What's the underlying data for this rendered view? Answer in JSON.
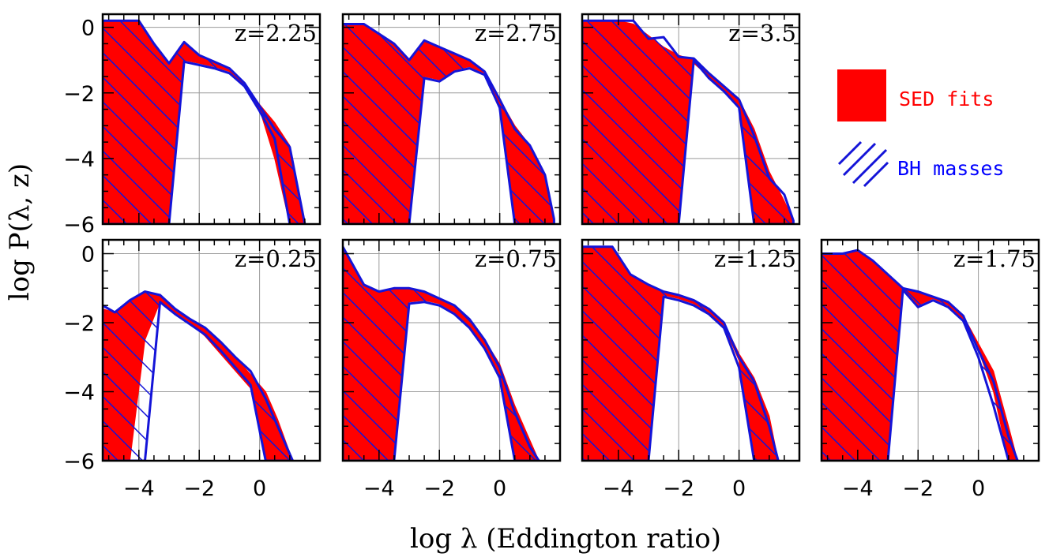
{
  "figure": {
    "ylabel": "log P(λ, z)",
    "xlabel": "log λ  (Eddington ratio)"
  },
  "legend": {
    "sed_label": "SED fits",
    "bh_label": "BH masses",
    "sed_color": "#ff0000",
    "bh_color": "#0000ff"
  },
  "chart_data": [
    {
      "type": "area",
      "label": "z=2.25",
      "xlim": [
        -5.2,
        2.0
      ],
      "ylim": [
        -6,
        0.4
      ],
      "xticks": [],
      "yticks": [
        "0",
        "-2",
        "-4",
        "-6"
      ],
      "series": [
        {
          "name": "SED fits",
          "x": [
            -5.2,
            -4.0,
            -3.5,
            -3.0,
            -2.5,
            -2.0,
            -1.5,
            -1.0,
            -0.5,
            0,
            0.5,
            1.0,
            1.5
          ],
          "upper": [
            0.2,
            0.2,
            -0.5,
            -1.1,
            -0.45,
            -0.9,
            -1.05,
            -1.3,
            -1.7,
            -2.35,
            -2.9,
            -3.6,
            -5.95
          ],
          "lower": [
            -6,
            -6,
            -6,
            -6,
            -1.0,
            -1.1,
            -1.2,
            -1.35,
            -1.8,
            -2.5,
            -4.0,
            -6,
            -6
          ]
        },
        {
          "name": "BH masses",
          "x": [
            -5.2,
            -4.0,
            -3.5,
            -3.0,
            -2.5,
            -2.0,
            -1.5,
            -1.0,
            -0.5,
            0,
            0.5,
            1.0,
            1.5
          ],
          "upper": [
            0.2,
            0.2,
            -0.5,
            -1.1,
            -0.45,
            -0.85,
            -1.05,
            -1.25,
            -1.7,
            -2.4,
            -3.1,
            -3.65,
            -6
          ],
          "lower": [
            -6,
            -6,
            -6,
            -6,
            -1.05,
            -1.15,
            -1.25,
            -1.4,
            -1.8,
            -2.55,
            -3.4,
            -6,
            -6
          ]
        }
      ]
    },
    {
      "type": "area",
      "label": "z=2.75",
      "xlim": [
        -5.2,
        2.0
      ],
      "ylim": [
        -6,
        0.4
      ],
      "xticks": [],
      "yticks": [],
      "series": [
        {
          "name": "SED fits",
          "x": [
            -5.2,
            -4.5,
            -4.0,
            -3.5,
            -3.0,
            -2.5,
            -2.0,
            -1.5,
            -1.0,
            -0.5,
            0,
            0.5,
            1.0,
            1.5,
            1.8
          ],
          "upper": [
            0.1,
            0.1,
            -0.2,
            -0.5,
            -1.0,
            -0.4,
            -0.6,
            -0.8,
            -1.0,
            -1.35,
            -2.2,
            -3.0,
            -3.6,
            -4.5,
            -5.85
          ],
          "lower": [
            -6,
            -6,
            -6,
            -6,
            -6,
            -1.5,
            -1.6,
            -1.3,
            -1.2,
            -1.4,
            -2.4,
            -6,
            -6,
            -6,
            -6
          ]
        },
        {
          "name": "BH masses",
          "x": [
            -5.2,
            -4.5,
            -4.0,
            -3.5,
            -3.0,
            -2.5,
            -2.0,
            -1.5,
            -1.0,
            -0.5,
            0,
            0.5,
            1.0,
            1.5,
            1.8
          ],
          "upper": [
            0.1,
            0.1,
            -0.2,
            -0.5,
            -1.0,
            -0.4,
            -0.6,
            -0.8,
            -1.0,
            -1.35,
            -2.2,
            -3.1,
            -3.6,
            -4.5,
            -5.85
          ],
          "lower": [
            -6,
            -6,
            -6,
            -6,
            -6,
            -1.55,
            -1.65,
            -1.35,
            -1.25,
            -1.45,
            -2.45,
            -6,
            -6,
            -6,
            -6
          ]
        }
      ]
    },
    {
      "type": "area",
      "label": "z=3.5",
      "xlim": [
        -5.2,
        2.0
      ],
      "ylim": [
        -6,
        0.4
      ],
      "xticks": [],
      "yticks": [],
      "series": [
        {
          "name": "SED fits",
          "x": [
            -5.2,
            -4.0,
            -3.5,
            -3.0,
            -2.5,
            -2.0,
            -1.5,
            -1.0,
            -0.5,
            0,
            0.5,
            1.0,
            1.5,
            1.8
          ],
          "upper": [
            0.2,
            0.2,
            0.1,
            -0.25,
            -0.6,
            -0.85,
            -1.0,
            -1.4,
            -1.8,
            -2.2,
            -3.1,
            -4.4,
            -5.3,
            -5.9
          ],
          "lower": [
            -6,
            -6,
            -6,
            -6,
            -6,
            -6,
            -1.1,
            -1.5,
            -1.9,
            -2.4,
            -6,
            -6,
            -6,
            -6
          ]
        },
        {
          "name": "BH masses",
          "x": [
            -5.2,
            -4.0,
            -3.5,
            -3.0,
            -2.5,
            -2.0,
            -1.5,
            -1.0,
            -0.5,
            0,
            0.5,
            1.0,
            1.5,
            1.8
          ],
          "upper": [
            0.2,
            0.2,
            0.2,
            -0.35,
            -0.3,
            -0.9,
            -0.95,
            -1.4,
            -1.8,
            -2.2,
            -3.3,
            -4.6,
            -5.1,
            -5.9
          ],
          "lower": [
            -6,
            -6,
            -6,
            -6,
            -6,
            -6,
            -1.0,
            -1.55,
            -1.95,
            -2.45,
            -6,
            -6,
            -6,
            -6
          ]
        }
      ]
    },
    {
      "type": "area",
      "label": "z=0.25",
      "xlim": [
        -5.2,
        2.0
      ],
      "ylim": [
        -6,
        0.4
      ],
      "xticks": [
        "-4",
        "-2",
        "0"
      ],
      "yticks": [
        "0",
        "-2",
        "-4",
        "-6"
      ],
      "series": [
        {
          "name": "SED fits",
          "x": [
            -5.2,
            -4.8,
            -4.3,
            -3.8,
            -3.3,
            -2.8,
            -2.3,
            -1.8,
            -1.3,
            -0.8,
            -0.3,
            0.2,
            0.6,
            1.1
          ],
          "upper": [
            -1.6,
            -1.7,
            -1.4,
            -1.1,
            -1.2,
            -1.6,
            -1.9,
            -2.2,
            -2.6,
            -3.0,
            -3.5,
            -4.0,
            -4.8,
            -6
          ],
          "lower": [
            -6,
            -6,
            -6,
            -2.5,
            -1.4,
            -1.7,
            -2.0,
            -2.4,
            -2.9,
            -3.4,
            -3.9,
            -6,
            -6,
            -6
          ]
        },
        {
          "name": "BH masses",
          "x": [
            -5.2,
            -4.8,
            -4.3,
            -3.8,
            -3.3,
            -2.8,
            -2.3,
            -1.8,
            -1.3,
            -0.8,
            -0.3,
            0.2,
            0.6,
            1.1
          ],
          "upper": [
            -1.5,
            -1.7,
            -1.35,
            -1.1,
            -1.2,
            -1.6,
            -1.9,
            -2.15,
            -2.55,
            -3.0,
            -3.4,
            -4.2,
            -5.0,
            -6
          ],
          "lower": [
            -6,
            -6,
            -6,
            -6,
            -1.4,
            -1.75,
            -2.05,
            -2.35,
            -2.8,
            -3.3,
            -3.8,
            -6,
            -6,
            -6
          ]
        }
      ]
    },
    {
      "type": "area",
      "label": "z=0.75",
      "xlim": [
        -5.2,
        2.0
      ],
      "ylim": [
        -6,
        0.4
      ],
      "xticks": [
        "-4",
        "-2",
        "0"
      ],
      "yticks": [],
      "series": [
        {
          "name": "SED fits",
          "x": [
            -5.2,
            -4.5,
            -4.0,
            -3.5,
            -3.0,
            -2.5,
            -2.0,
            -1.5,
            -1.0,
            -0.5,
            0,
            0.5,
            1.0,
            1.3
          ],
          "upper": [
            0.2,
            -0.9,
            -1.1,
            -1.0,
            -1.0,
            -1.1,
            -1.3,
            -1.5,
            -1.9,
            -2.5,
            -3.2,
            -4.4,
            -5.4,
            -6
          ],
          "lower": [
            -6,
            -6,
            -6,
            -6,
            -1.4,
            -1.35,
            -1.45,
            -1.7,
            -2.1,
            -2.7,
            -3.5,
            -6,
            -6,
            -6
          ]
        },
        {
          "name": "BH masses",
          "x": [
            -5.2,
            -4.5,
            -4.0,
            -3.5,
            -3.0,
            -2.5,
            -2.0,
            -1.5,
            -1.0,
            -0.5,
            0,
            0.5,
            1.0,
            1.3
          ],
          "upper": [
            0.2,
            -0.9,
            -1.1,
            -1.0,
            -1.0,
            -1.1,
            -1.3,
            -1.5,
            -1.9,
            -2.5,
            -3.3,
            -4.6,
            -5.6,
            -6
          ],
          "lower": [
            -6,
            -6,
            -6,
            -6,
            -1.45,
            -1.4,
            -1.5,
            -1.75,
            -2.15,
            -2.75,
            -3.6,
            -6,
            -6,
            -6
          ]
        }
      ]
    },
    {
      "type": "area",
      "label": "z=1.25",
      "xlim": [
        -5.2,
        2.0
      ],
      "ylim": [
        -6,
        0.4
      ],
      "xticks": [
        "-4",
        "-2",
        "0"
      ],
      "yticks": [],
      "series": [
        {
          "name": "SED fits",
          "x": [
            -5.2,
            -4.2,
            -3.6,
            -3.0,
            -2.5,
            -2.0,
            -1.5,
            -1.0,
            -0.5,
            0,
            0.5,
            1.0,
            1.3
          ],
          "upper": [
            0.2,
            0.2,
            -0.6,
            -0.9,
            -1.1,
            -1.2,
            -1.35,
            -1.6,
            -2.0,
            -2.9,
            -3.6,
            -4.7,
            -6
          ],
          "lower": [
            -6,
            -6,
            -6,
            -6,
            -1.2,
            -1.3,
            -1.45,
            -1.7,
            -2.1,
            -3.1,
            -6,
            -6,
            -6
          ]
        },
        {
          "name": "BH masses",
          "x": [
            -5.2,
            -4.2,
            -3.6,
            -3.0,
            -2.5,
            -2.0,
            -1.5,
            -1.0,
            -0.5,
            0,
            0.5,
            1.0,
            1.3
          ],
          "upper": [
            0.2,
            0.2,
            -0.6,
            -0.9,
            -1.1,
            -1.2,
            -1.35,
            -1.6,
            -2.0,
            -3.0,
            -3.7,
            -5.0,
            -6
          ],
          "lower": [
            -6,
            -6,
            -6,
            -6,
            -1.25,
            -1.35,
            -1.5,
            -1.75,
            -2.15,
            -3.3,
            -6,
            -6,
            -6
          ]
        }
      ]
    },
    {
      "type": "area",
      "label": "z=1.75",
      "xlim": [
        -5.2,
        2.0
      ],
      "ylim": [
        -6,
        0.4
      ],
      "xticks": [
        "-4",
        "-2",
        "0"
      ],
      "yticks": [],
      "series": [
        {
          "name": "SED fits",
          "x": [
            -5.2,
            -4.5,
            -4.0,
            -3.5,
            -3.0,
            -2.5,
            -2.0,
            -1.5,
            -1.0,
            -0.5,
            0,
            0.5,
            1.0,
            1.3
          ],
          "upper": [
            0,
            0,
            0.1,
            -0.2,
            -0.6,
            -1.0,
            -1.1,
            -1.25,
            -1.4,
            -1.8,
            -2.6,
            -3.4,
            -5.0,
            -6
          ],
          "lower": [
            -6,
            -6,
            -6,
            -6,
            -6,
            -1.0,
            -1.5,
            -1.3,
            -1.5,
            -1.9,
            -2.8,
            -4.0,
            -6,
            -6
          ]
        },
        {
          "name": "BH masses",
          "x": [
            -5.2,
            -4.5,
            -4.0,
            -3.5,
            -3.0,
            -2.5,
            -2.0,
            -1.5,
            -1.0,
            -0.5,
            0,
            0.5,
            1.0,
            1.3
          ],
          "upper": [
            0,
            0,
            0.1,
            -0.2,
            -0.6,
            -1.0,
            -1.1,
            -1.25,
            -1.4,
            -1.8,
            -2.8,
            -3.7,
            -5.3,
            -6
          ],
          "lower": [
            -6,
            -6,
            -6,
            -6,
            -6,
            -1.05,
            -1.55,
            -1.35,
            -1.55,
            -1.95,
            -3.0,
            -4.4,
            -6,
            -6
          ]
        }
      ]
    }
  ]
}
